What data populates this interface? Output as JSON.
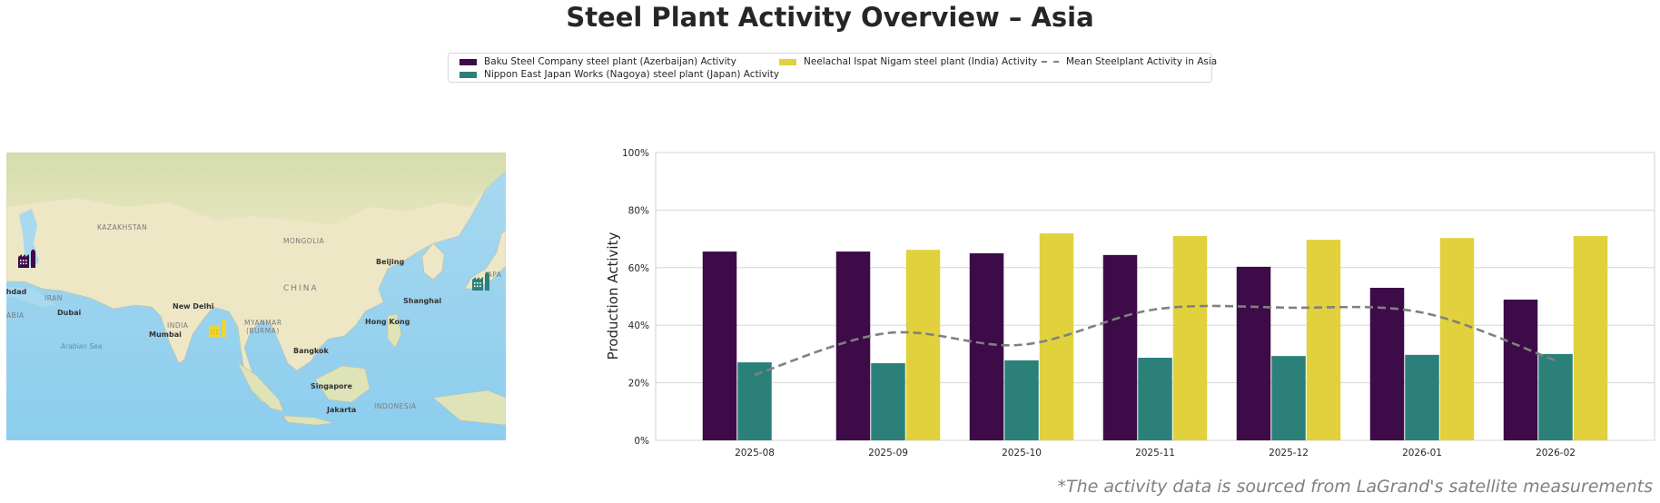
{
  "title": "Steel Plant Activity Overview – Asia",
  "footnote": "*The activity data is sourced from LaGrand's satellite measurements",
  "legend": {
    "items": [
      {
        "label": "Baku Steel Company steel plant (Azerbaijan) Activity",
        "color": "#3d0b48",
        "kind": "bar"
      },
      {
        "label": "Nippon East Japan Works (Nagoya) steel plant (Japan) Activity",
        "color": "#2c807a",
        "kind": "bar"
      },
      {
        "label": "Neelachal Ispat Nigam steel plant (India) Activity",
        "color": "#e1d13d",
        "kind": "bar"
      },
      {
        "label": "Mean Steelplant Activity in Asia",
        "color": "#808080",
        "kind": "dashed-line"
      }
    ]
  },
  "map": {
    "labels": [
      {
        "text": "KAZAKHSTAN",
        "kind": "country"
      },
      {
        "text": "MONGOLIA",
        "kind": "country"
      },
      {
        "text": "CHINA",
        "kind": "country"
      },
      {
        "text": "IRAN",
        "kind": "country"
      },
      {
        "text": "INDIA",
        "kind": "country"
      },
      {
        "text": "MYANMAR",
        "kind": "country"
      },
      {
        "text": "(BURMA)",
        "kind": "country"
      },
      {
        "text": "INDONESIA",
        "kind": "country"
      },
      {
        "text": "ABIA",
        "kind": "country"
      },
      {
        "text": "JAPA",
        "kind": "country"
      },
      {
        "text": "Beijing",
        "kind": "city"
      },
      {
        "text": "Shanghai",
        "kind": "city"
      },
      {
        "text": "Hong Kong",
        "kind": "city"
      },
      {
        "text": "New Delhi",
        "kind": "city"
      },
      {
        "text": "Mumbai",
        "kind": "city"
      },
      {
        "text": "Dubai",
        "kind": "city"
      },
      {
        "text": "Bangkok",
        "kind": "city"
      },
      {
        "text": "Singapore",
        "kind": "city"
      },
      {
        "text": "Jakarta",
        "kind": "city"
      },
      {
        "text": "ghdad",
        "kind": "city"
      },
      {
        "text": "Arabian Sea",
        "kind": "sea"
      }
    ],
    "markers": [
      {
        "name": "Baku Steel Company",
        "icon": "factory-icon",
        "color": "#3d0b48"
      },
      {
        "name": "Neelachal Ispat Nigam",
        "icon": "factory-icon",
        "color": "#f2d52a"
      },
      {
        "name": "Nippon East Japan Works (Nagoya)",
        "icon": "factory-icon",
        "color": "#2c807a"
      }
    ]
  },
  "chart_data": {
    "type": "bar",
    "title": "",
    "xlabel": "",
    "ylabel": "Production Activity",
    "ylim": [
      0,
      100
    ],
    "yticks": [
      "0%",
      "20%",
      "40%",
      "60%",
      "80%",
      "100%"
    ],
    "ytick_values": [
      0,
      20,
      40,
      60,
      80,
      100
    ],
    "grid": true,
    "legend_position": "top-center",
    "categories": [
      "2025-08",
      "2025-09",
      "2025-10",
      "2025-11",
      "2025-12",
      "2026-01",
      "2026-02"
    ],
    "series": [
      {
        "name": "Baku Steel Company steel plant (Azerbaijan) Activity",
        "type": "bar",
        "color": "#3d0b48",
        "values": [
          65.6,
          65.6,
          65.0,
          64.4,
          60.3,
          53.0,
          48.9
        ]
      },
      {
        "name": "Nippon East Japan Works (Nagoya) steel plant (Japan) Activity",
        "type": "bar",
        "color": "#2c807a",
        "values": [
          27.1,
          26.8,
          27.8,
          28.7,
          29.3,
          29.7,
          30.0
        ]
      },
      {
        "name": "Neelachal Ispat Nigam steel plant (India) Activity",
        "type": "bar",
        "color": "#e1d13d",
        "values": [
          null,
          66.2,
          71.9,
          71.0,
          69.7,
          70.3,
          71.0
        ]
      },
      {
        "name": "Mean Steelplant Activity in Asia",
        "type": "line",
        "style": "dashed",
        "color": "#808080",
        "values": [
          22.8,
          37.3,
          33.2,
          45.5,
          46.1,
          44.4,
          27.7
        ]
      }
    ]
  }
}
